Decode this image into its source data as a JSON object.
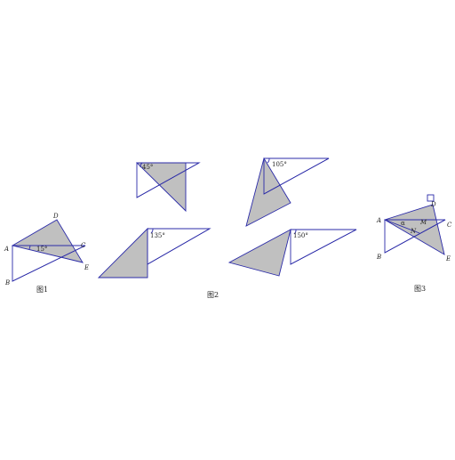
{
  "figure1": {
    "caption": "图1",
    "points": {
      "A": "A",
      "B": "B",
      "C": "C",
      "D": "D",
      "E": "E"
    },
    "angle": "15°"
  },
  "figure2": {
    "caption": "图2",
    "angles": [
      "45°",
      "105°",
      "135°",
      "150°"
    ]
  },
  "figure3": {
    "caption": "图3",
    "points": {
      "A": "A",
      "B": "B",
      "C": "C",
      "D": "D",
      "E": "E",
      "M": "M",
      "N": "N"
    },
    "angle": "α"
  }
}
